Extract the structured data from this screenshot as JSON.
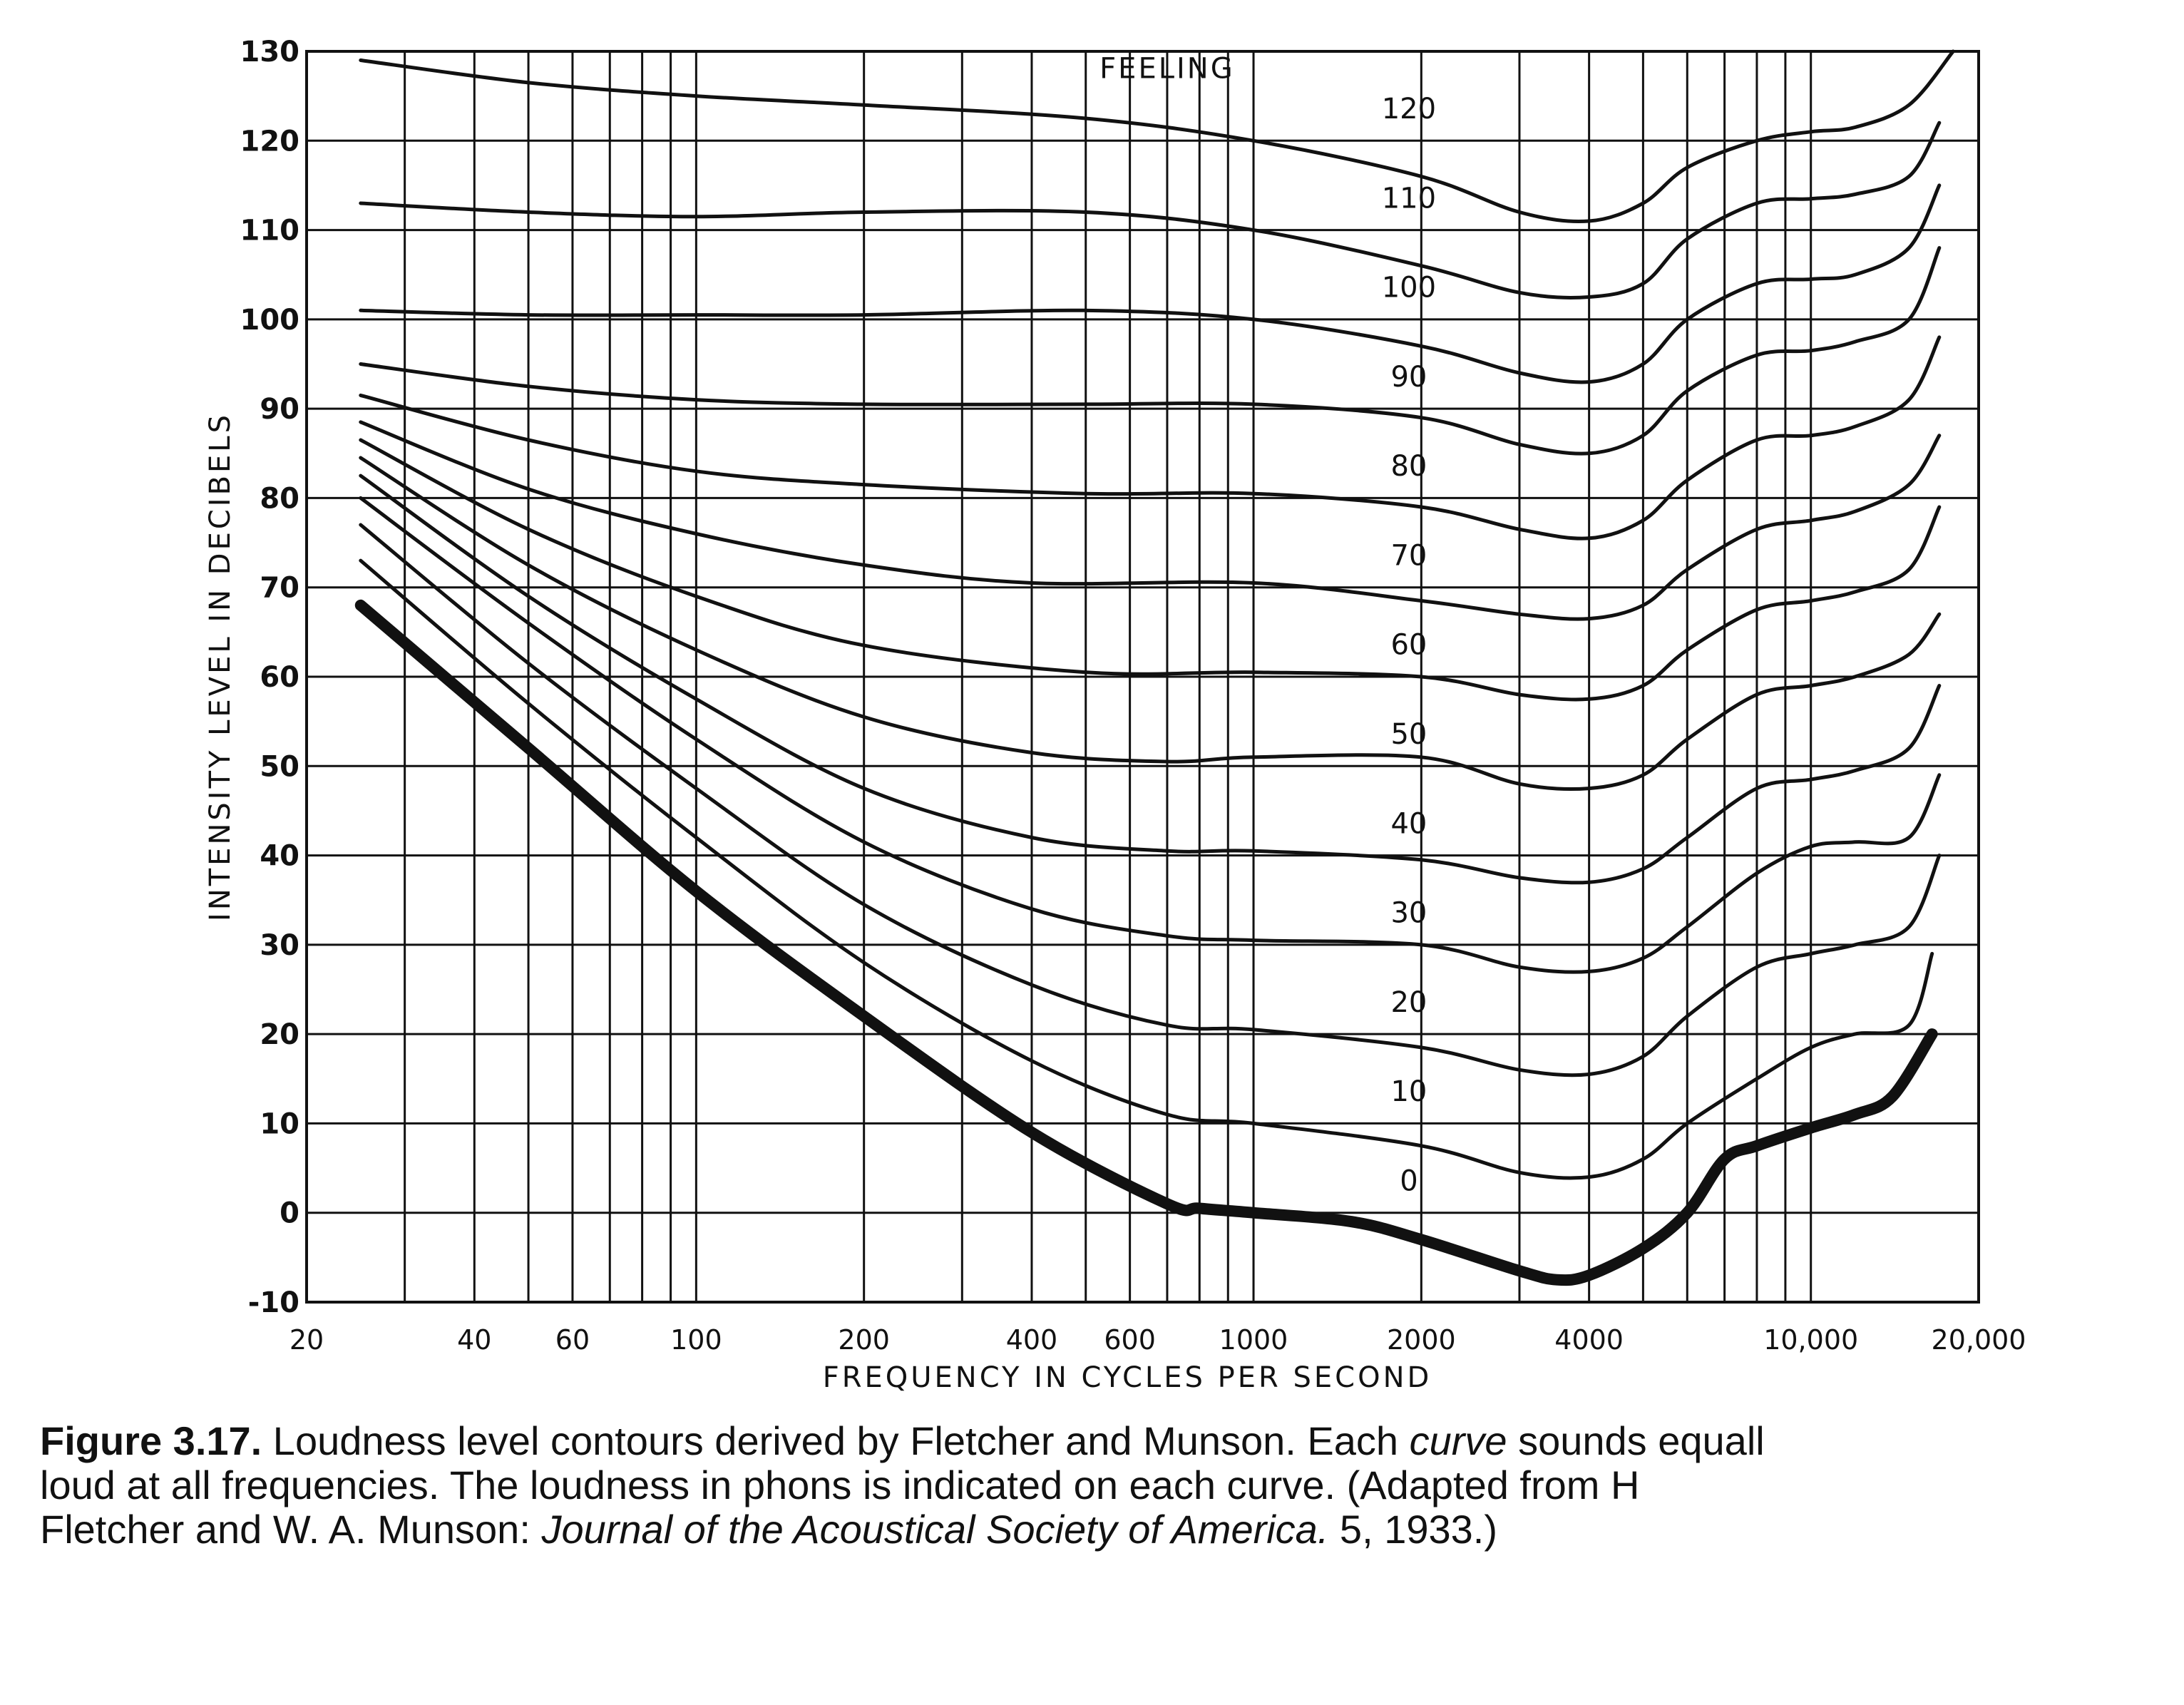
{
  "chart_data": {
    "type": "line",
    "xlabel": "FREQUENCY IN CYCLES PER SECOND",
    "ylabel": "INTENSITY LEVEL IN DECIBELS",
    "xscale": "log",
    "xlim": [
      20,
      20000
    ],
    "ylim": [
      -10,
      130
    ],
    "grid": true,
    "yticks": [
      {
        "value": 130,
        "label": "130"
      },
      {
        "value": 120,
        "label": "120"
      },
      {
        "value": 110,
        "label": "110"
      },
      {
        "value": 100,
        "label": "100"
      },
      {
        "value": 90,
        "label": "90"
      },
      {
        "value": 80,
        "label": "80"
      },
      {
        "value": 70,
        "label": "70"
      },
      {
        "value": 60,
        "label": "60"
      },
      {
        "value": 50,
        "label": "50"
      },
      {
        "value": 40,
        "label": "40"
      },
      {
        "value": 30,
        "label": "30"
      },
      {
        "value": 20,
        "label": "20"
      },
      {
        "value": 10,
        "label": "10"
      },
      {
        "value": 0,
        "label": "0"
      },
      {
        "value": -10,
        "label": "-10"
      }
    ],
    "xticks": [
      {
        "value": 20,
        "label": "20"
      },
      {
        "value": 40,
        "label": "40"
      },
      {
        "value": 60,
        "label": "60"
      },
      {
        "value": 100,
        "label": "100"
      },
      {
        "value": 200,
        "label": "200"
      },
      {
        "value": 400,
        "label": "400"
      },
      {
        "value": 600,
        "label": "600"
      },
      {
        "value": 1000,
        "label": "1000"
      },
      {
        "value": 2000,
        "label": "2000"
      },
      {
        "value": 4000,
        "label": "4000"
      },
      {
        "value": 10000,
        "label": "10,000"
      },
      {
        "value": 20000,
        "label": "20,000"
      }
    ],
    "annotations": [
      {
        "text": "FEELING",
        "x": 700,
        "y": 127
      }
    ],
    "series": [
      {
        "name": "120",
        "x": [
          25,
          50,
          100,
          200,
          500,
          1000,
          2000,
          3000,
          4000,
          5000,
          6000,
          8000,
          10000,
          12000,
          15000,
          18000
        ],
        "y": [
          129,
          126.5,
          125,
          124,
          122.5,
          120,
          116,
          112,
          111,
          113,
          117,
          120,
          121,
          121.5,
          124,
          130
        ]
      },
      {
        "name": "110",
        "x": [
          25,
          50,
          100,
          200,
          500,
          1000,
          2000,
          3000,
          4000,
          5000,
          6000,
          8000,
          10000,
          12000,
          15000,
          17000
        ],
        "y": [
          113,
          112,
          111.5,
          112,
          112,
          110,
          106,
          103,
          102.5,
          104,
          109,
          113,
          113.5,
          114,
          116,
          122
        ]
      },
      {
        "name": "100",
        "x": [
          25,
          50,
          100,
          200,
          500,
          1000,
          2000,
          3000,
          4000,
          5000,
          6000,
          8000,
          10000,
          12000,
          15000,
          17000
        ],
        "y": [
          101,
          100.5,
          100.5,
          100.5,
          101,
          100,
          97,
          94,
          93,
          95,
          100,
          104,
          104.5,
          105,
          108,
          115
        ]
      },
      {
        "name": "90",
        "x": [
          25,
          50,
          100,
          200,
          500,
          1000,
          2000,
          3000,
          4000,
          5000,
          6000,
          8000,
          10000,
          12000,
          15000,
          17000
        ],
        "y": [
          95,
          92.5,
          91,
          90.5,
          90.5,
          90.5,
          89,
          86,
          85,
          87,
          92,
          96,
          96.5,
          97.5,
          100,
          108
        ]
      },
      {
        "name": "80",
        "x": [
          25,
          50,
          100,
          200,
          500,
          1000,
          2000,
          3000,
          4000,
          5000,
          6000,
          8000,
          10000,
          12000,
          15000,
          17000
        ],
        "y": [
          91.5,
          86.5,
          83,
          81.5,
          80.5,
          80.5,
          79,
          76.5,
          75.5,
          77.5,
          82,
          86.5,
          87,
          88,
          91,
          98
        ]
      },
      {
        "name": "70",
        "x": [
          25,
          50,
          100,
          200,
          400,
          1000,
          2000,
          3000,
          4000,
          5000,
          6000,
          8000,
          10000,
          12000,
          15000,
          17000
        ],
        "y": [
          88.5,
          81,
          76,
          72.5,
          70.5,
          70.5,
          68.5,
          67,
          66.5,
          68,
          72,
          76.5,
          77.5,
          78.5,
          81.5,
          87
        ]
      },
      {
        "name": "60",
        "x": [
          25,
          50,
          100,
          200,
          500,
          1000,
          2000,
          3000,
          4000,
          5000,
          6000,
          8000,
          10000,
          12000,
          15000,
          17000
        ],
        "y": [
          86.5,
          76.5,
          69,
          63.5,
          60.5,
          60.5,
          60,
          58,
          57.5,
          59,
          63,
          67.5,
          68.5,
          69.5,
          72,
          79
        ]
      },
      {
        "name": "50",
        "x": [
          25,
          50,
          100,
          200,
          400,
          700,
          1000,
          2000,
          3000,
          4000,
          5000,
          6000,
          8000,
          10000,
          12000,
          15000,
          17000
        ],
        "y": [
          84.5,
          72.5,
          63,
          55.5,
          51.5,
          50.5,
          51,
          51,
          48,
          47.5,
          49,
          53,
          58,
          59,
          60,
          62.5,
          67
        ]
      },
      {
        "name": "40",
        "x": [
          25,
          50,
          100,
          200,
          400,
          700,
          1000,
          2000,
          3000,
          4000,
          5000,
          6000,
          8000,
          10000,
          12000,
          15000,
          17000
        ],
        "y": [
          82.5,
          69,
          57.5,
          47.5,
          42,
          40.5,
          40.5,
          39.5,
          37.5,
          37,
          38.5,
          42,
          47.5,
          48.5,
          49.5,
          52,
          59
        ]
      },
      {
        "name": "30",
        "x": [
          25,
          50,
          100,
          200,
          400,
          700,
          1000,
          2000,
          3000,
          4000,
          5000,
          6000,
          8000,
          10000,
          12000,
          15000,
          17000
        ],
        "y": [
          80,
          66,
          53,
          41.5,
          34,
          31,
          30.5,
          30,
          27.5,
          27,
          28.5,
          32,
          38,
          41,
          41.5,
          42,
          49
        ]
      },
      {
        "name": "20",
        "x": [
          25,
          50,
          100,
          200,
          400,
          700,
          1000,
          2000,
          3000,
          4000,
          5000,
          6000,
          8000,
          10000,
          12000,
          15000,
          17000
        ],
        "y": [
          77,
          61.5,
          47.5,
          34.5,
          25.5,
          21,
          20.5,
          18.5,
          16,
          15.5,
          17.5,
          22,
          27.5,
          29,
          30,
          32,
          40
        ]
      },
      {
        "name": "10",
        "x": [
          25,
          50,
          100,
          200,
          400,
          700,
          1000,
          2000,
          3000,
          4000,
          5000,
          6000,
          8000,
          10000,
          12000,
          15000,
          16500
        ],
        "y": [
          73,
          57,
          42,
          28,
          17,
          11,
          10,
          7.5,
          4.5,
          4,
          6,
          10,
          15,
          18.5,
          20,
          21,
          29
        ]
      },
      {
        "name": "0",
        "x": [
          25,
          50,
          100,
          200,
          400,
          700,
          800,
          1000,
          1500,
          2000,
          3000,
          3500,
          4000,
          5000,
          6000,
          7000,
          8000,
          10000,
          12000,
          14000,
          16500
        ],
        "y": [
          68,
          52,
          36,
          22,
          9,
          1,
          0.5,
          0,
          -1,
          -3,
          -6.5,
          -7.5,
          -7,
          -4,
          0,
          6,
          7.5,
          9.5,
          11,
          13,
          20
        ]
      }
    ]
  },
  "caption": {
    "figure_label": "Figure 3.17.",
    "line1_text": " Loudness level contours derived by Fletcher and Munson. Each ",
    "line1_emph": "curve",
    "line1_tail": " sounds equall",
    "line2": "loud at all frequencies. The loudness in phons is indicated on each curve. (Adapted from H",
    "line3_start": "Fletcher and W. A. Munson: ",
    "line3_journal": "Journal of the Acoustical Society of America.",
    "line3_end": " 5, 1933.)"
  }
}
